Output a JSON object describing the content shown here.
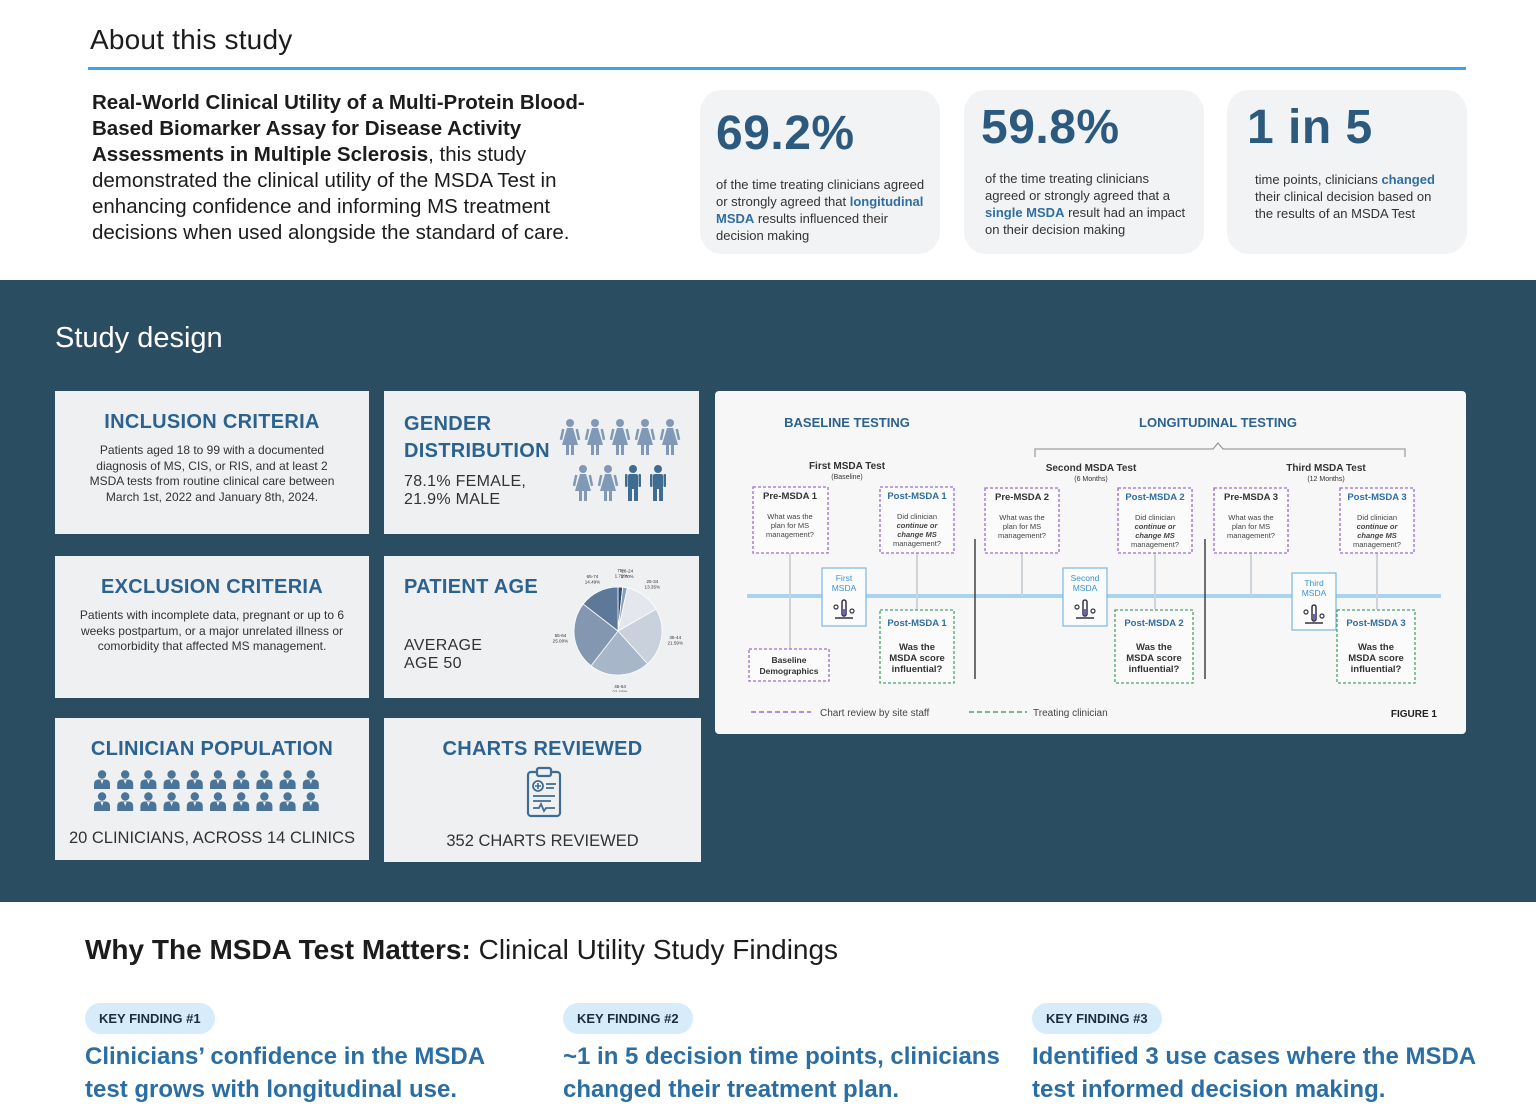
{
  "about": {
    "title": "About this study",
    "study_title": "Real-World Clinical Utility of a Multi-Protein Blood-Based Biomarker Assay for Disease Activity Assessments in Multiple Sclerosis",
    "study_text": ", this study demonstrated the clinical utility of the MSDA Test in enhancing confidence and informing MS treatment decisions when used alongside the standard of care.",
    "stats": [
      {
        "value": "69.2%",
        "pre": "of the time treating clinicians agreed or strongly agreed that ",
        "hl": "longitudinal MSDA",
        "post": " results influenced their decision making"
      },
      {
        "value": "59.8%",
        "pre": "of the time treating clinicians agreed or strongly agreed that a ",
        "hl": "single MSDA",
        "post": " result had an impact on their decision making"
      },
      {
        "value": "1 in 5",
        "pre": "time points, clinicians ",
        "hl": "changed",
        "post": " their clinical decision based on the results of an MSDA Test"
      }
    ]
  },
  "design": {
    "title": "Study design",
    "inclusion": {
      "title": "INCLUSION CRITERIA",
      "text": "Patients aged 18 to 99 with a documented diagnosis of MS, CIS, or RIS, and at least 2 MSDA tests from routine clinical care between March 1st, 2022 and January 8th, 2024."
    },
    "exclusion": {
      "title": "EXCLUSION CRITERIA",
      "text": "Patients with incomplete data, pregnant or up to 6 weeks postpartum, or a major unrelated illness or comorbidity that affected MS management."
    },
    "clinicians": {
      "title": "CLINICIAN POPULATION",
      "text": "20 CLINICIANS, ACROSS 14 CLINICS"
    },
    "gender": {
      "title_1": "GENDER",
      "title_2": "DISTRIBUTION",
      "line_1": "78.1% FEMALE,",
      "line_2": "21.9% MALE"
    },
    "age": {
      "title": "PATIENT AGE",
      "line_1": "AVERAGE",
      "line_2": "AGE 50"
    },
    "charts": {
      "title": "CHARTS REVIEWED",
      "text": "352 CHARTS REVIEWED"
    }
  },
  "chart_data": {
    "type": "pie",
    "title": "PATIENT AGE",
    "labels": [
      "75+",
      "18-24",
      "25-34",
      "35-44",
      "45-54",
      "55-64",
      "65-74"
    ],
    "pct_labels": [
      "1.70%",
      "1.70%",
      "13.35%",
      "21.59%",
      "22.16%",
      "25.00%",
      "14.49%"
    ],
    "values": [
      1.7,
      1.7,
      13.35,
      21.59,
      22.16,
      25.0,
      14.49
    ],
    "colors": [
      "#2b4d6e",
      "#8aa0b8",
      "#e4e8ee",
      "#c8d1dc",
      "#a7b6c8",
      "#8497b0",
      "#5d7899"
    ]
  },
  "figure": {
    "baseline_title": "BASELINE TESTING",
    "longitudinal_title": "LONGITUDINAL TESTING",
    "tests": [
      {
        "name": "First MSDA Test",
        "when": "(Baseline)",
        "marker_1": "First",
        "marker_2": "MSDA"
      },
      {
        "name": "Second MSDA Test",
        "when": "(6 Months)",
        "marker_1": "Second",
        "marker_2": "MSDA"
      },
      {
        "name": "Third MSDA Test",
        "when": "(12 Months)",
        "marker_1": "Third",
        "marker_2": "MSDA"
      }
    ],
    "pre": [
      {
        "title": "Pre-MSDA 1",
        "q1": "What was the",
        "q2": "plan for MS",
        "q3": "management?"
      },
      {
        "title": "Pre-MSDA 2",
        "q1": "What was the",
        "q2": "plan for MS",
        "q3": "management?"
      },
      {
        "title": "Pre-MSDA 3",
        "q1": "What was the",
        "q2": "plan for MS",
        "q3": "management?"
      }
    ],
    "post_top": [
      {
        "title": "Post-MSDA 1",
        "q1": "Did clinician",
        "q2": "continue or",
        "q3": "change MS",
        "q4": "management?"
      },
      {
        "title": "Post-MSDA 2",
        "q1": "Did clinician",
        "q2": "continue or",
        "q3": "change MS",
        "q4": "management?"
      },
      {
        "title": "Post-MSDA 3",
        "q1": "Did clinician",
        "q2": "continue or",
        "q3": "change MS",
        "q4": "management?"
      }
    ],
    "post_bottom": [
      {
        "title": "Post-MSDA 1",
        "q1": "Was the",
        "q2": "MSDA score",
        "q3": "influential?"
      },
      {
        "title": "Post-MSDA 2",
        "q1": "Was the",
        "q2": "MSDA score",
        "q3": "influential?"
      },
      {
        "title": "Post-MSDA 3",
        "q1": "Was the",
        "q2": "MSDA score",
        "q3": "influential?"
      }
    ],
    "baseline_demo_1": "Baseline",
    "baseline_demo_2": "Demographics",
    "legend_site": "Chart review by site staff",
    "legend_clinician": "Treating clinician",
    "figure_label": "FIGURE 1"
  },
  "findings": {
    "title_bold": "Why The MSDA Test Matters:",
    "title_rest": " Clinical Utility Study Findings",
    "items": [
      {
        "pill": "KEY FINDING #1",
        "line_1": "Clinicians’ confidence in the MSDA",
        "line_2": "test grows with longitudinal use."
      },
      {
        "pill": "KEY FINDING #2",
        "line_1": "~1 in 5 decision time points, clinicians",
        "line_2": "changed their treatment plan."
      },
      {
        "pill": "KEY FINDING #3",
        "line_1": "Identified 3 use cases where the MSDA",
        "line_2": "test informed decision making."
      }
    ]
  }
}
